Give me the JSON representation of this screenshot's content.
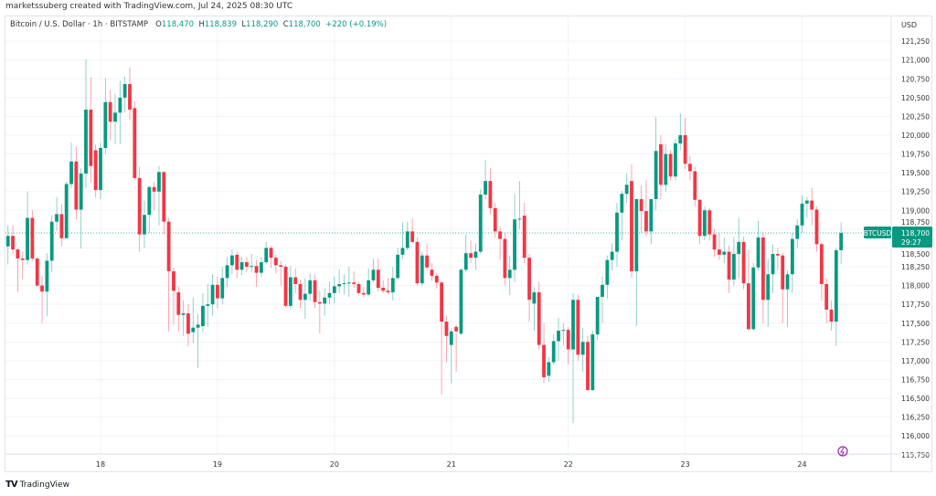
{
  "credit": "marketssuberg created with TradingView.com, Jul 24, 2025 08:30 UTC",
  "legend": {
    "symbol": "Bitcoin / U.S. Dollar · 1h · BITSTAMP",
    "o_label": "O",
    "o": "118,470",
    "h_label": "H",
    "h": "118,839",
    "l_label": "L",
    "l": "118,290",
    "c_label": "C",
    "c": "118,700",
    "change": "+220 (+0.19%)"
  },
  "currency": "USD",
  "last_price": {
    "ticker": "BTCUSD",
    "price": "118,700",
    "countdown": "29:27"
  },
  "brand": "TradingView",
  "colors": {
    "up": "#089981",
    "down": "#f23645",
    "grid": "#f0f3fa",
    "last_line": "#089981",
    "widget_icon": "#9c27b0"
  },
  "icons": {
    "logo": "tradingview-logo",
    "widget": "lightning-badge-icon"
  },
  "chart_data": {
    "type": "candlestick",
    "interval": "1h",
    "ylim": [
      115750,
      121250
    ],
    "grid": true,
    "y_ticks": [
      "121,250",
      "121,000",
      "120,750",
      "120,500",
      "120,250",
      "120,000",
      "119,750",
      "119,500",
      "119,250",
      "119,000",
      "118,750",
      "118,500",
      "118,250",
      "118,000",
      "117,750",
      "117,500",
      "117,250",
      "117,000",
      "116,750",
      "116,500",
      "116,250",
      "116,000",
      "115,750"
    ],
    "x_ticks": [
      {
        "label": "18",
        "index": 19
      },
      {
        "label": "19",
        "index": 43
      },
      {
        "label": "20",
        "index": 67
      },
      {
        "label": "21",
        "index": 91
      },
      {
        "label": "22",
        "index": 115
      },
      {
        "label": "23",
        "index": 139
      },
      {
        "label": "24",
        "index": 163
      }
    ],
    "ohlc_columns": [
      "open",
      "high",
      "low",
      "close"
    ],
    "candles": [
      [
        118520,
        118800,
        118280,
        118660
      ],
      [
        118660,
        118800,
        118420,
        118480
      ],
      [
        118480,
        118500,
        117910,
        118360
      ],
      [
        118360,
        118450,
        118080,
        118340
      ],
      [
        118340,
        119250,
        118280,
        118900
      ],
      [
        118900,
        119000,
        118330,
        118360
      ],
      [
        118360,
        118370,
        117980,
        118000
      ],
      [
        118000,
        118130,
        117500,
        117920
      ],
      [
        117920,
        118430,
        117590,
        118330
      ],
      [
        118330,
        118930,
        118180,
        118850
      ],
      [
        118850,
        119170,
        118730,
        118950
      ],
      [
        118950,
        119080,
        118520,
        118630
      ],
      [
        118630,
        119380,
        118630,
        119350
      ],
      [
        119350,
        119900,
        119300,
        119650
      ],
      [
        119650,
        119850,
        118880,
        119010
      ],
      [
        119010,
        119560,
        118490,
        119490
      ],
      [
        119490,
        121010,
        119300,
        120340
      ],
      [
        120340,
        120770,
        119370,
        119590
      ],
      [
        119800,
        119880,
        119170,
        119270
      ],
      [
        119270,
        119900,
        119150,
        119830
      ],
      [
        119830,
        120760,
        119750,
        120440
      ],
      [
        120440,
        120600,
        119930,
        120180
      ],
      [
        120180,
        120550,
        119880,
        120300
      ],
      [
        120300,
        120720,
        119880,
        120500
      ],
      [
        120500,
        120780,
        120300,
        120680
      ],
      [
        120680,
        120900,
        120200,
        120340
      ],
      [
        120360,
        120450,
        119400,
        119430
      ],
      [
        119430,
        119580,
        118450,
        118680
      ],
      [
        118680,
        119130,
        118500,
        118940
      ],
      [
        118940,
        119330,
        118700,
        119310
      ],
      [
        119310,
        119380,
        119000,
        119250
      ],
      [
        119250,
        119590,
        118800,
        119510
      ],
      [
        119510,
        119520,
        118680,
        118850
      ],
      [
        118850,
        118900,
        117390,
        118190
      ],
      [
        118190,
        118240,
        117480,
        117930
      ],
      [
        117910,
        117990,
        117380,
        117610
      ],
      [
        117610,
        117800,
        117330,
        117630
      ],
      [
        117630,
        117750,
        117190,
        117360
      ],
      [
        117380,
        117840,
        117240,
        117440
      ],
      [
        117440,
        117620,
        116900,
        117480
      ],
      [
        117460,
        117900,
        117380,
        117730
      ],
      [
        117730,
        118020,
        117450,
        117750
      ],
      [
        117750,
        118150,
        117600,
        118010
      ],
      [
        118010,
        118120,
        117700,
        117830
      ],
      [
        117830,
        118250,
        117750,
        118100
      ],
      [
        118100,
        118380,
        117980,
        118270
      ],
      [
        118270,
        118480,
        118150,
        118400
      ],
      [
        118410,
        118450,
        118100,
        118210
      ],
      [
        118210,
        118380,
        118140,
        118310
      ],
      [
        118310,
        118380,
        118180,
        118250
      ],
      [
        118250,
        118420,
        118180,
        118260
      ],
      [
        118260,
        118340,
        117980,
        118170
      ],
      [
        118170,
        118380,
        118120,
        118310
      ],
      [
        118310,
        118580,
        118280,
        118500
      ],
      [
        118500,
        118530,
        118240,
        118370
      ],
      [
        118370,
        118410,
        118160,
        118270
      ],
      [
        118270,
        118330,
        118000,
        118250
      ],
      [
        118250,
        118280,
        117710,
        117730
      ],
      [
        117730,
        118260,
        117700,
        118110
      ],
      [
        118110,
        118230,
        117900,
        118020
      ],
      [
        118020,
        118080,
        117700,
        117810
      ],
      [
        117810,
        118100,
        117560,
        117890
      ],
      [
        117890,
        118160,
        117800,
        118070
      ],
      [
        118070,
        118150,
        117700,
        117780
      ],
      [
        117780,
        117930,
        117360,
        117760
      ],
      [
        117760,
        117960,
        117600,
        117840
      ],
      [
        117840,
        118050,
        117750,
        117900
      ],
      [
        117900,
        118120,
        117760,
        117990
      ],
      [
        117990,
        118220,
        117900,
        118020
      ],
      [
        118020,
        118150,
        117880,
        118030
      ],
      [
        118030,
        118250,
        117850,
        118040
      ],
      [
        118040,
        118190,
        117970,
        118020
      ],
      [
        118020,
        118050,
        117880,
        117900
      ],
      [
        117900,
        117980,
        117840,
        117880
      ],
      [
        117880,
        118230,
        117860,
        118070
      ],
      [
        118070,
        118360,
        118040,
        118210
      ],
      [
        118210,
        118360,
        117920,
        117970
      ],
      [
        117970,
        118070,
        117900,
        117930
      ],
      [
        117930,
        118100,
        117880,
        117910
      ],
      [
        117910,
        118250,
        117800,
        118100
      ],
      [
        118100,
        118500,
        118080,
        118410
      ],
      [
        118410,
        118840,
        118350,
        118500
      ],
      [
        118500,
        118850,
        118470,
        118720
      ],
      [
        118720,
        118890,
        118560,
        118580
      ],
      [
        118580,
        118640,
        118000,
        118030
      ],
      [
        118030,
        118450,
        118000,
        118400
      ],
      [
        118400,
        118560,
        118200,
        118240
      ],
      [
        118210,
        118300,
        118060,
        118130
      ],
      [
        118130,
        118170,
        117960,
        118040
      ],
      [
        118040,
        118060,
        116550,
        117520
      ],
      [
        117520,
        117600,
        116980,
        117330
      ],
      [
        117210,
        117420,
        116700,
        117390
      ],
      [
        117450,
        117480,
        116850,
        117390
      ],
      [
        117360,
        118230,
        117340,
        118210
      ],
      [
        118210,
        118680,
        118180,
        118430
      ],
      [
        118430,
        118600,
        118300,
        118370
      ],
      [
        118370,
        118560,
        118210,
        118450
      ],
      [
        118450,
        119280,
        118420,
        119210
      ],
      [
        119210,
        119670,
        119150,
        119390
      ],
      [
        119390,
        119560,
        118950,
        119030
      ],
      [
        119030,
        119100,
        118640,
        118720
      ],
      [
        118720,
        118780,
        118340,
        118620
      ],
      [
        118620,
        118700,
        118000,
        118100
      ],
      [
        118100,
        118400,
        117870,
        118210
      ],
      [
        118210,
        119220,
        118050,
        118880
      ],
      [
        118880,
        119390,
        118750,
        118890
      ],
      [
        118930,
        119100,
        118300,
        118370
      ],
      [
        118370,
        118420,
        117520,
        117810
      ],
      [
        117760,
        117980,
        117400,
        117910
      ],
      [
        117910,
        118050,
        117150,
        117210
      ],
      [
        117210,
        117500,
        116700,
        116780
      ],
      [
        116800,
        117050,
        116720,
        116980
      ],
      [
        116980,
        117350,
        116950,
        117260
      ],
      [
        117260,
        117570,
        117000,
        117400
      ],
      [
        117410,
        117500,
        117200,
        117410
      ],
      [
        117410,
        117450,
        116950,
        117150
      ],
      [
        117150,
        117900,
        116170,
        117810
      ],
      [
        117810,
        117880,
        117000,
        117080
      ],
      [
        117080,
        117440,
        116850,
        117250
      ],
      [
        117250,
        117330,
        116600,
        116610
      ],
      [
        116610,
        117400,
        116600,
        117350
      ],
      [
        117350,
        117850,
        117280,
        117850
      ],
      [
        117850,
        118120,
        117500,
        118010
      ],
      [
        118010,
        118400,
        117820,
        118340
      ],
      [
        118340,
        118560,
        118200,
        118450
      ],
      [
        118450,
        119100,
        118250,
        118970
      ],
      [
        118970,
        119260,
        118600,
        119220
      ],
      [
        119220,
        119490,
        119100,
        119340
      ],
      [
        119390,
        119610,
        118100,
        118190
      ],
      [
        118190,
        119150,
        117460,
        119150
      ],
      [
        119150,
        119330,
        118700,
        118990
      ],
      [
        118990,
        119400,
        118650,
        118720
      ],
      [
        118720,
        119150,
        118550,
        119150
      ],
      [
        119150,
        120240,
        119000,
        119790
      ],
      [
        119880,
        120000,
        119150,
        119340
      ],
      [
        119340,
        119880,
        119250,
        119750
      ],
      [
        119750,
        119800,
        119400,
        119450
      ],
      [
        119450,
        119950,
        119400,
        119890
      ],
      [
        119890,
        120290,
        119800,
        120000
      ],
      [
        120000,
        120230,
        119550,
        119620
      ],
      [
        119620,
        119720,
        119400,
        119520
      ],
      [
        119520,
        119580,
        119050,
        119140
      ],
      [
        119140,
        119150,
        118550,
        118660
      ],
      [
        118660,
        119050,
        118600,
        119000
      ],
      [
        119000,
        119030,
        118600,
        118680
      ],
      [
        118680,
        118750,
        118380,
        118480
      ],
      [
        118480,
        118700,
        118340,
        118410
      ],
      [
        118410,
        118640,
        118300,
        118450
      ],
      [
        118450,
        118530,
        117900,
        118080
      ],
      [
        118080,
        118650,
        118000,
        118420
      ],
      [
        118420,
        118900,
        118100,
        118580
      ],
      [
        118580,
        118650,
        117950,
        118030
      ],
      [
        118030,
        118480,
        117400,
        117420
      ],
      [
        117420,
        118300,
        117400,
        118240
      ],
      [
        118240,
        118860,
        118200,
        118640
      ],
      [
        118640,
        118700,
        117500,
        117810
      ],
      [
        117810,
        118350,
        117450,
        118150
      ],
      [
        118150,
        118550,
        117900,
        118420
      ],
      [
        118420,
        118500,
        118200,
        118400
      ],
      [
        118400,
        118430,
        117500,
        117950
      ],
      [
        117950,
        118200,
        117450,
        118150
      ],
      [
        118150,
        118700,
        117900,
        118620
      ],
      [
        118620,
        118880,
        118500,
        118800
      ],
      [
        118800,
        119200,
        118700,
        119090
      ],
      [
        119090,
        119180,
        118900,
        119130
      ],
      [
        119130,
        119300,
        118800,
        119010
      ],
      [
        119010,
        119050,
        118450,
        118550
      ],
      [
        118550,
        118580,
        117800,
        118020
      ],
      [
        118020,
        118100,
        117500,
        117680
      ],
      [
        117680,
        117800,
        117400,
        117520
      ],
      [
        117520,
        118500,
        117200,
        118470
      ],
      [
        118470,
        118840,
        118290,
        118700
      ]
    ],
    "last_value": 118700
  }
}
